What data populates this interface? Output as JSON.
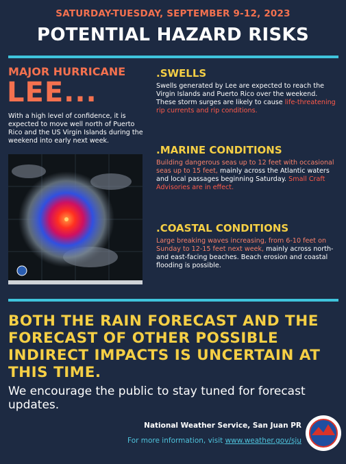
{
  "header": {
    "date": "SATURDAY-TUESDAY, SEPTEMBER 9-12, 2023",
    "title": "POTENTIAL HAZARD RISKS"
  },
  "storm": {
    "kicker": "MAJOR HURRICANE",
    "name": "LEE...",
    "summary": "With a high level of confidence, it is expected to move well north of Puerto Rico and the US Virgin Islands during the weekend into early next week."
  },
  "sections": [
    {
      "heading": ".SWELLS",
      "segments": [
        "Swells generated by Lee are expected to reach the Virgin Islands and Puerto Rico over the weekend. These storm surges are likely to cause ",
        "life-threatening rip currents and rip conditions."
      ]
    },
    {
      "heading": ".MARINE CONDITIONS",
      "segments": [
        "Building dangerous seas up to 12 feet with occasional seas up to 15 feet,",
        " mainly across the Atlantic waters and local passages beginning Saturday.",
        " Small Craft Advisories are in effect."
      ]
    },
    {
      "heading": ".COASTAL CONDITIONS",
      "segments": [
        "Large breaking waves increasing, from 6-10 feet on Sunday to 12-15 feet next week,",
        " mainly across north- and east-facing beaches. Beach erosion and coastal flooding is possible."
      ]
    }
  ],
  "uncertainty": "BOTH THE RAIN FORECAST AND THE FORECAST OF OTHER POSSIBLE INDIRECT IMPACTS IS UNCERTAIN AT THIS TIME.",
  "encouragement": "We encourage the public to stay tuned for forecast updates.",
  "footer": {
    "office": "National Weather Service, San Juan PR",
    "more": "For more information, visit ",
    "link": "www.weather.gov/sju"
  }
}
